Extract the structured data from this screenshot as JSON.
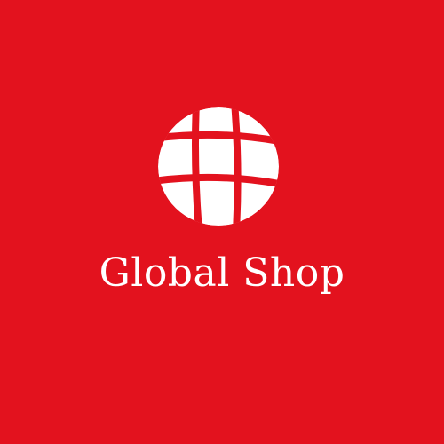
{
  "brand": {
    "name": "Global Shop",
    "icon": "globe-icon"
  },
  "colors": {
    "background": "#e3121e",
    "foreground": "#ffffff"
  }
}
